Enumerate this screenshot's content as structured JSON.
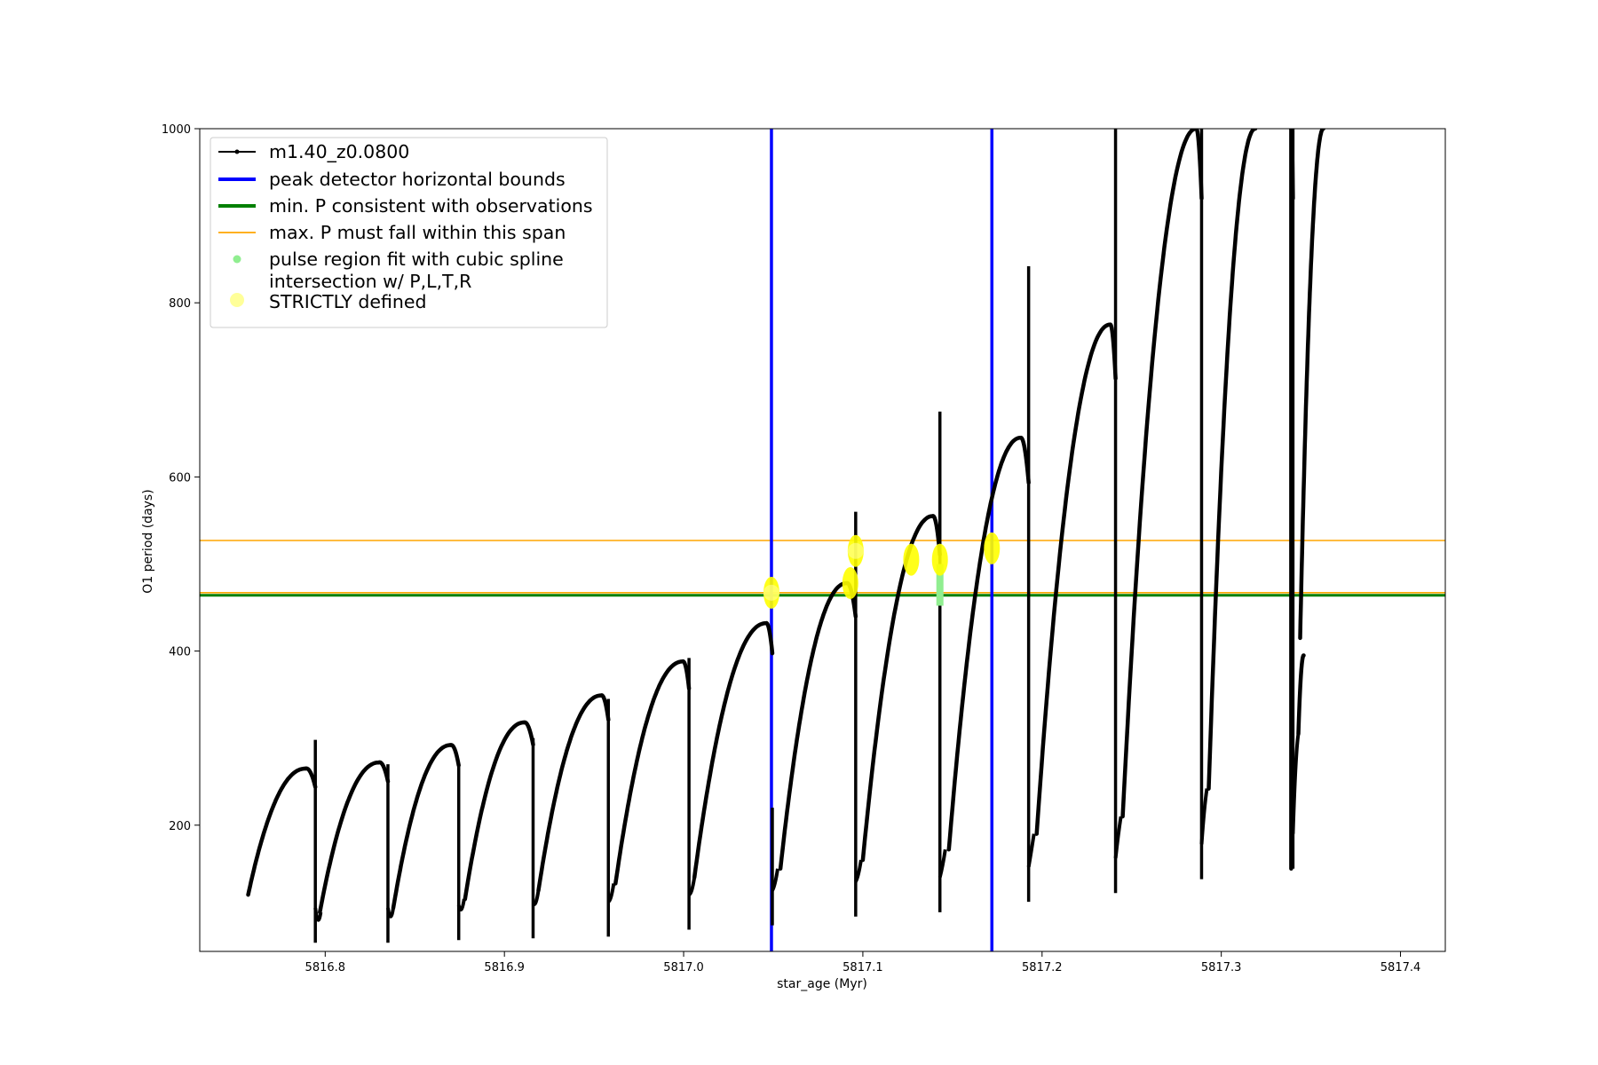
{
  "chart_data": {
    "type": "line",
    "title": "",
    "xlabel": "star_age (Myr)",
    "ylabel": "O1 period (days)",
    "xlim": [
      5816.73,
      5817.425
    ],
    "ylim": [
      55,
      1000
    ],
    "grid": false,
    "legend_position": "top-left",
    "x_ticks": [
      5816.8,
      5816.9,
      5817.0,
      5817.1,
      5817.2,
      5817.3,
      5817.4
    ],
    "x_tick_labels": [
      "5816.8",
      "5816.9",
      "5817.0",
      "5817.1",
      "5817.2",
      "5817.3",
      "5817.4"
    ],
    "y_ticks": [
      200,
      400,
      600,
      800,
      1000
    ],
    "y_tick_labels": [
      "200",
      "400",
      "600",
      "800",
      "1000"
    ],
    "legend": [
      {
        "key": "series",
        "label": "m1.40_z0.0800",
        "kind": "line-marker",
        "color": "#000000"
      },
      {
        "key": "bounds",
        "label": "peak detector horizontal bounds",
        "kind": "thick-line",
        "color": "#0000ff"
      },
      {
        "key": "minp",
        "label": "min. P consistent with observations",
        "kind": "thick-line",
        "color": "#008000"
      },
      {
        "key": "maxp",
        "label": "max. P must fall within this span",
        "kind": "thin-line",
        "color": "#ffa500"
      },
      {
        "key": "spline",
        "label": "pulse region fit with cubic spline",
        "kind": "dot",
        "color": "#90ee90"
      },
      {
        "key": "intersect",
        "label": "intersection w/ P,L,T,R\nSTRICTLY defined",
        "kind": "big-dot",
        "color": "#ffff99"
      }
    ],
    "series": [
      {
        "name": "m1.40_z0.0800",
        "color": "#000000",
        "cycles": [
          {
            "start": 5816.757,
            "low": 120,
            "peak_x": 5816.789,
            "peak_y": 265,
            "end": 5816.7945,
            "min_y": 65,
            "spike_y": 298,
            "post_min": 100
          },
          {
            "start": 5816.797,
            "low": 100,
            "peak_x": 5816.83,
            "peak_y": 272,
            "end": 5816.835,
            "min_y": 65,
            "spike_y": 270,
            "post_min": 105
          },
          {
            "start": 5816.838,
            "low": 105,
            "peak_x": 5816.87,
            "peak_y": 292,
            "end": 5816.8745,
            "min_y": 68,
            "spike_y": 270,
            "post_min": 115
          },
          {
            "start": 5816.878,
            "low": 115,
            "peak_x": 5816.911,
            "peak_y": 318,
            "end": 5816.916,
            "min_y": 70,
            "spike_y": 300,
            "post_min": 125
          },
          {
            "start": 5816.919,
            "low": 125,
            "peak_x": 5816.954,
            "peak_y": 349,
            "end": 5816.958,
            "min_y": 72,
            "spike_y": 345,
            "post_min": 133
          },
          {
            "start": 5816.962,
            "low": 133,
            "peak_x": 5816.9995,
            "peak_y": 388,
            "end": 5817.003,
            "min_y": 80,
            "spike_y": 392,
            "post_min": 140
          },
          {
            "start": 5817.006,
            "low": 140,
            "peak_x": 5817.046,
            "peak_y": 432,
            "end": 5817.0495,
            "min_y": 85,
            "spike_y": 220,
            "post_min": 150
          },
          {
            "start": 5817.054,
            "low": 150,
            "peak_x": 5817.091,
            "peak_y": 478,
            "end": 5817.096,
            "min_y": 95,
            "spike_y": 560,
            "post_min": 160
          },
          {
            "start": 5817.1,
            "low": 160,
            "peak_x": 5817.139,
            "peak_y": 555,
            "end": 5817.143,
            "min_y": 100,
            "spike_y": 675,
            "post_min": 172
          },
          {
            "start": 5817.148,
            "low": 172,
            "peak_x": 5817.188,
            "peak_y": 645,
            "end": 5817.1925,
            "min_y": 112,
            "spike_y": 842,
            "post_min": 190
          },
          {
            "start": 5817.197,
            "low": 190,
            "peak_x": 5817.238,
            "peak_y": 775,
            "end": 5817.241,
            "min_y": 122,
            "spike_y": 1000,
            "post_min": 210
          },
          {
            "start": 5817.245,
            "low": 210,
            "peak_x": 5817.286,
            "peak_y": 1000,
            "end": 5817.289,
            "min_y": 138,
            "spike_y": 1000,
            "post_min": 242
          },
          {
            "start": 5817.293,
            "low": 242,
            "peak_x": 5817.319,
            "peak_y": 1000,
            "end": null,
            "min_y": null,
            "spike_y": null,
            "post_min": null
          },
          {
            "start": 5817.339,
            "low": 150,
            "peak_x": 5817.339,
            "peak_y": 1000,
            "end": 5817.34,
            "min_y": 150,
            "spike_y": 1000,
            "post_min": 305
          },
          {
            "start": 5817.343,
            "low": 305,
            "peak_x": 5817.346,
            "peak_y": 395,
            "end": null,
            "min_y": null,
            "spike_y": null,
            "post_min": null
          },
          {
            "start": 5817.344,
            "low": 415,
            "peak_x": 5817.357,
            "peak_y": 1000,
            "end": null,
            "min_y": null,
            "spike_y": null,
            "post_min": null
          }
        ]
      }
    ],
    "vertical_lines": [
      {
        "name": "peak detector horizontal bounds",
        "x": 5817.049,
        "color": "#0000ff"
      },
      {
        "name": "peak detector horizontal bounds",
        "x": 5817.172,
        "color": "#0000ff"
      }
    ],
    "horizontal_lines": [
      {
        "name": "min. P consistent with observations",
        "y": 464,
        "color": "#008000"
      },
      {
        "name": "max. P must fall within this span",
        "y": 467,
        "color": "#ffa500"
      },
      {
        "name": "max. P must fall within this span",
        "y": 527,
        "color": "#ffa500"
      }
    ],
    "spline_regions": [
      {
        "x": 5817.143,
        "y_from": 452,
        "y_to": 500
      }
    ],
    "intersections": [
      {
        "x": 5817.049,
        "y": 467
      },
      {
        "x": 5817.093,
        "y": 478
      },
      {
        "x": 5817.096,
        "y": 515
      },
      {
        "x": 5817.127,
        "y": 505
      },
      {
        "x": 5817.143,
        "y": 505
      },
      {
        "x": 5817.172,
        "y": 518
      }
    ]
  }
}
